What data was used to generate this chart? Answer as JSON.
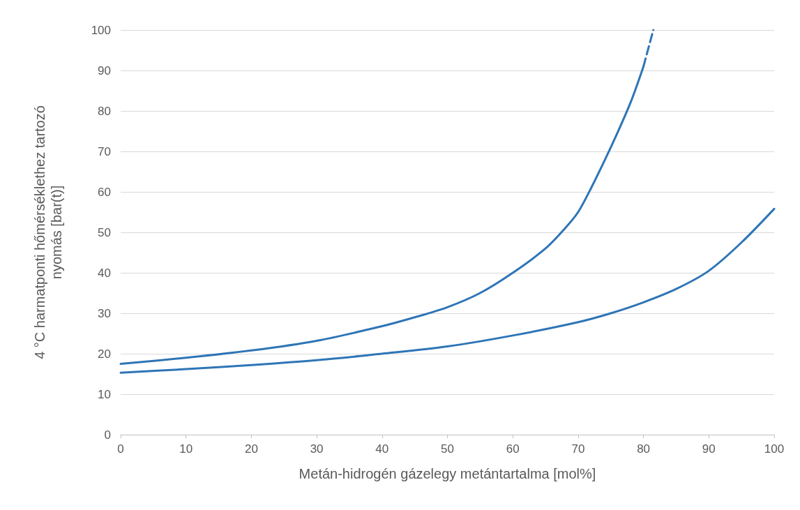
{
  "chart_data": {
    "type": "line",
    "xlabel": "Metán-hidrogén gázelegy metántartalma [mol%]",
    "ylabel": "4 °C harmatponti hőmérséklethez tartozó nyomás [bar(t)]",
    "series": [
      {
        "color": "#2e75b6",
        "x": [
          0,
          10,
          20,
          30,
          40,
          45,
          50,
          55,
          60,
          65,
          68,
          70,
          72,
          75,
          78,
          80
        ],
        "values": [
          17.5,
          19,
          20.8,
          23.2,
          26.8,
          29,
          31.5,
          35,
          40,
          46,
          51,
          55,
          61,
          71,
          82,
          91
        ]
      },
      {
        "color": "#2e75b6",
        "line_style": "dashed",
        "x": [
          80,
          81.5
        ],
        "values": [
          91,
          100
        ]
      },
      {
        "color": "#2e75b6",
        "x": [
          0,
          10,
          20,
          30,
          40,
          50,
          60,
          70,
          75,
          80,
          85,
          90,
          95,
          100
        ],
        "values": [
          15.3,
          16.2,
          17.2,
          18.4,
          20,
          21.8,
          24.5,
          27.8,
          30,
          32.7,
          36,
          40.5,
          47.5,
          55.8
        ]
      }
    ],
    "xlim": [
      0,
      100
    ],
    "xticks": [
      0,
      10,
      20,
      30,
      40,
      50,
      60,
      70,
      80,
      90,
      100
    ],
    "ylim": [
      0,
      100
    ],
    "yticks": [
      0,
      10,
      20,
      30,
      40,
      50,
      60,
      70,
      80,
      90,
      100
    ],
    "grid": "y",
    "marker": "none",
    "line_style": "solid"
  }
}
